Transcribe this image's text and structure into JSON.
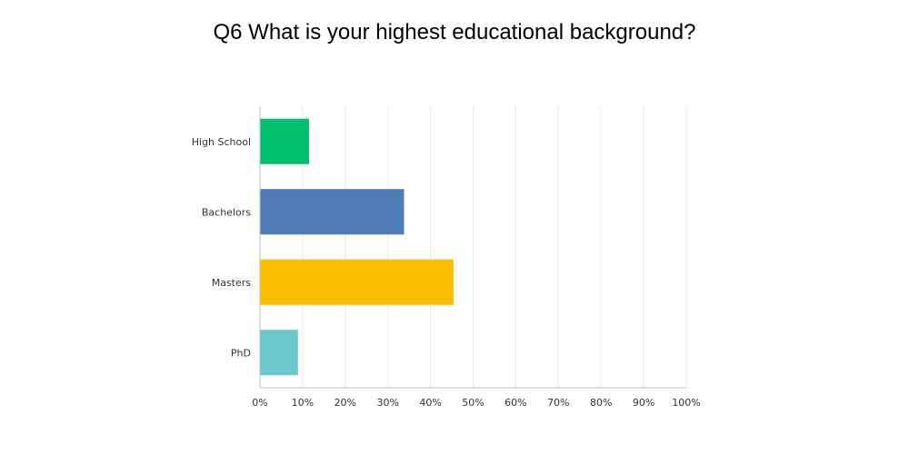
{
  "chart_data": {
    "type": "bar",
    "orientation": "horizontal",
    "title": "Q6 What is your highest educational background?",
    "categories": [
      "High School",
      "Bachelors",
      "Masters",
      "PhD"
    ],
    "values": [
      11.5,
      33.8,
      45.4,
      8.9
    ],
    "colors": [
      "#00bf6f",
      "#507cb6",
      "#f9be00",
      "#6bc8cd"
    ],
    "xlim": [
      0,
      100
    ],
    "x_ticks": [
      "0%",
      "10%",
      "20%",
      "30%",
      "40%",
      "50%",
      "60%",
      "70%",
      "80%",
      "90%",
      "100%"
    ],
    "grid": true,
    "legend": "none",
    "xlabel": "",
    "ylabel": ""
  }
}
